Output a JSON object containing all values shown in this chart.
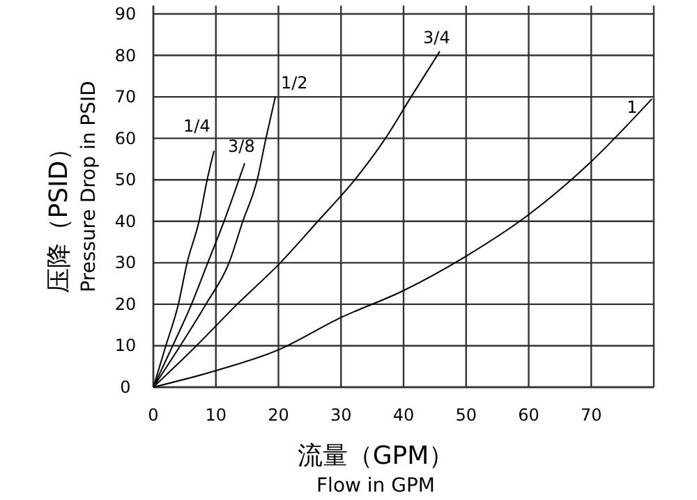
{
  "chart_data": {
    "type": "line",
    "xlabel": "流量（GPM）\nFlow in GPM",
    "ylabel": "压降（PSID）\nPressure Drop in PSID",
    "xlim": [
      0,
      80
    ],
    "ylim": [
      0,
      90
    ],
    "xticks": [
      0,
      10,
      20,
      30,
      40,
      50,
      60,
      70
    ],
    "yticks": [
      0,
      10,
      20,
      30,
      40,
      50,
      60,
      70,
      80,
      90
    ],
    "grid": true,
    "marker": "none",
    "line_style": "solid",
    "series": [
      {
        "name": "1/4",
        "color": "#000000",
        "x": [
          0,
          2,
          4,
          5.4,
          7.3,
          8.6,
          9.7
        ],
        "values": [
          0,
          10,
          20,
          30,
          40,
          50,
          57
        ]
      },
      {
        "name": "3/8",
        "color": "#000000",
        "x": [
          0,
          3.1,
          6.1,
          8.7,
          11.3,
          14.6
        ],
        "values": [
          0,
          10,
          20,
          30,
          40,
          54
        ]
      },
      {
        "name": "1/2",
        "color": "#000000",
        "x": [
          0,
          4.3,
          8.4,
          12.1,
          14.3,
          16.6,
          18,
          19.5
        ],
        "values": [
          0,
          10,
          20,
          30,
          40,
          50,
          60,
          70
        ]
      },
      {
        "name": "3/4",
        "color": "#000000",
        "x": [
          0,
          6.9,
          13.4,
          20.3,
          26.3,
          32.2,
          37.1,
          41.2,
          45.8
        ],
        "values": [
          0,
          10,
          20,
          30,
          40,
          50,
          60,
          70,
          81
        ]
      },
      {
        "name": "1",
        "color": "#000000",
        "x": [
          0,
          10,
          20,
          30,
          40,
          50,
          60,
          70,
          79.7
        ],
        "values": [
          0,
          4,
          9,
          16.8,
          23.3,
          31.6,
          41.6,
          54.4,
          69.5
        ]
      }
    ]
  }
}
